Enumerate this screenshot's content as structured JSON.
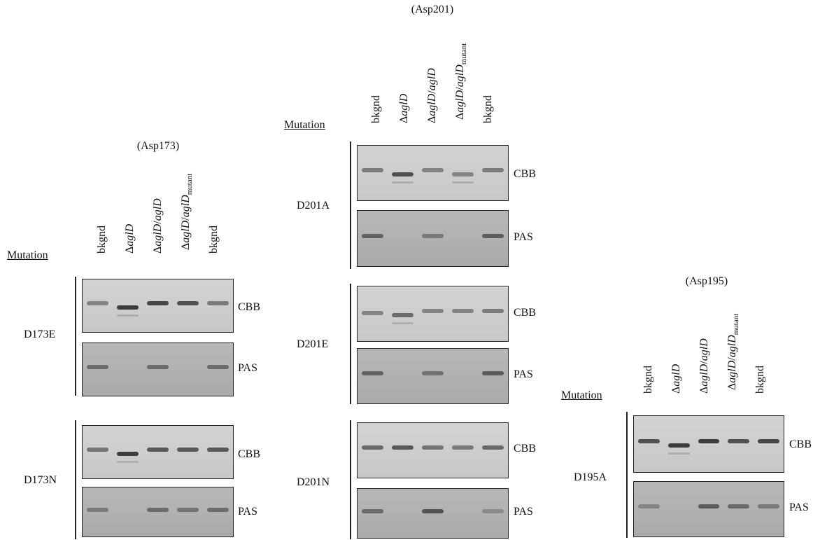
{
  "stain_labels": {
    "cbb": "CBB",
    "pas": "PAS"
  },
  "panels": [
    {
      "id": "asp173",
      "residue": "(Asp173)",
      "mutation_header": "Mutation",
      "lanes": [
        "bkgnd",
        "ΔaglD",
        "ΔaglD/aglD",
        "ΔaglD/aglDmutant",
        "bkgnd"
      ],
      "mutations": [
        {
          "name": "D173E",
          "cbb_bands": [
            0.5,
            0.9,
            0.85,
            0.8,
            0.55
          ],
          "cbb_shift": [
            0,
            1,
            0,
            0,
            0
          ],
          "pas_bands": [
            0.6,
            0,
            0.6,
            0,
            0.6
          ]
        },
        {
          "name": "D173N",
          "cbb_bands": [
            0.6,
            0.9,
            0.75,
            0.75,
            0.75
          ],
          "cbb_shift": [
            0,
            1,
            0,
            0,
            0
          ],
          "pas_bands": [
            0.5,
            0,
            0.6,
            0.55,
            0.6
          ]
        }
      ]
    },
    {
      "id": "asp201",
      "residue": "(Asp201)",
      "mutation_header": "Mutation",
      "lanes": [
        "bkgnd",
        "ΔaglD",
        "ΔaglD/aglD",
        "ΔaglD/aglDmutant",
        "bkgnd"
      ],
      "mutations": [
        {
          "name": "D201A",
          "cbb_bands": [
            0.55,
            0.8,
            0.5,
            0.5,
            0.55
          ],
          "cbb_shift": [
            0,
            1,
            0,
            1,
            0
          ],
          "pas_bands": [
            0.65,
            0,
            0.5,
            0,
            0.7
          ]
        },
        {
          "name": "D201E",
          "cbb_bands": [
            0.5,
            0.65,
            0.5,
            0.5,
            0.55
          ],
          "cbb_shift": [
            0.5,
            1,
            0,
            0,
            0
          ],
          "pas_bands": [
            0.65,
            0,
            0.55,
            0,
            0.7
          ]
        },
        {
          "name": "D201N",
          "cbb_bands": [
            0.65,
            0.75,
            0.6,
            0.55,
            0.65
          ],
          "cbb_shift": [
            0,
            0,
            0,
            0,
            0
          ],
          "pas_bands": [
            0.6,
            0,
            0.75,
            0,
            0.35
          ]
        }
      ]
    },
    {
      "id": "asp195",
      "residue": "(Asp195)",
      "mutation_header": "Mutation",
      "lanes": [
        "bkgnd",
        "ΔaglD",
        "ΔaglD/aglD",
        "ΔaglD/aglDmutant",
        "bkgnd"
      ],
      "mutations": [
        {
          "name": "D195A",
          "cbb_bands": [
            0.8,
            0.9,
            0.9,
            0.8,
            0.85
          ],
          "cbb_shift": [
            0,
            1,
            0,
            0,
            0
          ],
          "pas_bands": [
            0.4,
            0,
            0.7,
            0.6,
            0.5
          ]
        }
      ]
    }
  ]
}
